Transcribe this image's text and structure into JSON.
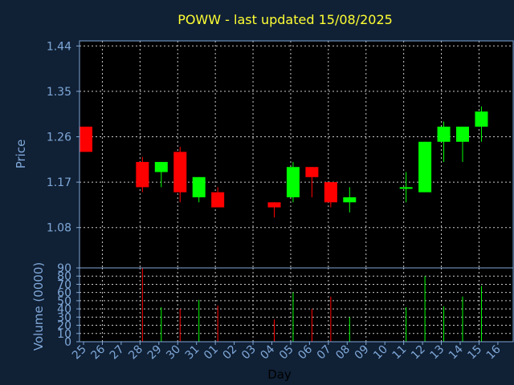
{
  "chart_data": {
    "type": "candlestick",
    "title": "POWW - last updated 15/08/2025",
    "xlabel": "Day",
    "ylabel": "Price",
    "volume_label": "Volume (0000)",
    "x_ticks": [
      "25",
      "26",
      "27",
      "28",
      "29",
      "30",
      "31",
      "01",
      "02",
      "03",
      "04",
      "05",
      "06",
      "07",
      "08",
      "09",
      "10",
      "11",
      "12",
      "13",
      "14",
      "15",
      "16"
    ],
    "y_ticks": [
      1.08,
      1.17,
      1.26,
      1.35,
      1.44
    ],
    "ylim": [
      1.0,
      1.45
    ],
    "volume_ticks": [
      0,
      10,
      20,
      30,
      40,
      50,
      60,
      70,
      80,
      90
    ],
    "volume_ylim": [
      0,
      90
    ],
    "grid": true,
    "colors": {
      "up": "#00ff00",
      "down": "#ff0000",
      "title": "#ffff33",
      "axis": "#7fa8d8",
      "background": "#102035",
      "plot": "#000000"
    },
    "candles": [
      {
        "day": "25",
        "open": 1.28,
        "high": 1.28,
        "low": 1.23,
        "close": 1.23,
        "volume": 0
      },
      {
        "day": "28",
        "open": 1.21,
        "high": 1.22,
        "low": 1.15,
        "close": 1.16,
        "volume": 90
      },
      {
        "day": "29",
        "open": 1.19,
        "high": 1.21,
        "low": 1.16,
        "close": 1.21,
        "volume": 42
      },
      {
        "day": "30",
        "open": 1.23,
        "high": 1.24,
        "low": 1.13,
        "close": 1.15,
        "volume": 40
      },
      {
        "day": "31",
        "open": 1.14,
        "high": 1.18,
        "low": 1.13,
        "close": 1.18,
        "volume": 51
      },
      {
        "day": "01",
        "open": 1.15,
        "high": 1.16,
        "low": 1.12,
        "close": 1.12,
        "volume": 44
      },
      {
        "day": "04",
        "open": 1.13,
        "high": 1.13,
        "low": 1.1,
        "close": 1.12,
        "volume": 27
      },
      {
        "day": "05",
        "open": 1.14,
        "high": 1.21,
        "low": 1.13,
        "close": 1.2,
        "volume": 60
      },
      {
        "day": "06",
        "open": 1.2,
        "high": 1.2,
        "low": 1.14,
        "close": 1.18,
        "volume": 40
      },
      {
        "day": "07",
        "open": 1.17,
        "high": 1.17,
        "low": 1.12,
        "close": 1.13,
        "volume": 55
      },
      {
        "day": "08",
        "open": 1.13,
        "high": 1.16,
        "low": 1.11,
        "close": 1.14,
        "volume": 30
      },
      {
        "day": "11",
        "open": 1.16,
        "high": 1.19,
        "low": 1.13,
        "close": 1.16,
        "volume": 42
      },
      {
        "day": "12",
        "open": 1.15,
        "high": 1.25,
        "low": 1.15,
        "close": 1.25,
        "volume": 80
      },
      {
        "day": "13",
        "open": 1.25,
        "high": 1.29,
        "low": 1.21,
        "close": 1.28,
        "volume": 43
      },
      {
        "day": "14",
        "open": 1.25,
        "high": 1.28,
        "low": 1.21,
        "close": 1.28,
        "volume": 55
      },
      {
        "day": "15",
        "open": 1.28,
        "high": 1.32,
        "low": 1.25,
        "close": 1.31,
        "volume": 68
      }
    ]
  }
}
